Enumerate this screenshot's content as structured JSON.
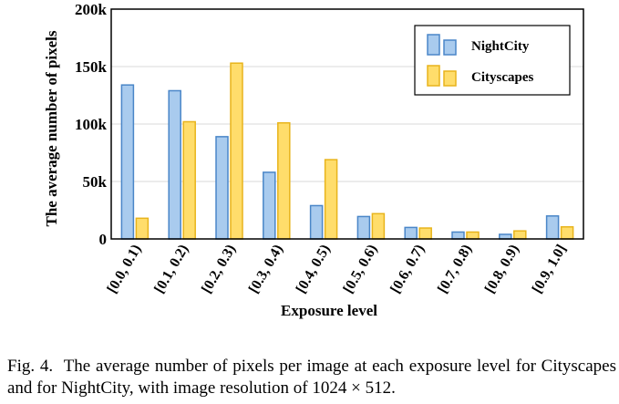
{
  "chart_data": {
    "type": "bar",
    "xlabel": "Exposure level",
    "ylabel": "The average number of pixels",
    "ylim": [
      0,
      200000
    ],
    "yticks": [
      {
        "value": 0,
        "label": "0"
      },
      {
        "value": 50000,
        "label": "50k"
      },
      {
        "value": 100000,
        "label": "100k"
      },
      {
        "value": 150000,
        "label": "150k"
      },
      {
        "value": 200000,
        "label": "200k"
      }
    ],
    "categories": [
      "[0.0, 0.1)",
      "[0.1, 0.2)",
      "[0.2, 0.3)",
      "[0.3, 0.4)",
      "[0.4, 0.5)",
      "[0.5, 0.6)",
      "[0.6, 0.7)",
      "[0.7, 0.8)",
      "[0.8, 0.9)",
      "[0.9, 1.0]"
    ],
    "series": [
      {
        "name": "NightCity",
        "color_fill": "#a9cbee",
        "color_stroke": "#4a86c8",
        "values": [
          134000,
          129000,
          89000,
          58000,
          29000,
          19500,
          10000,
          6000,
          4000,
          20000
        ]
      },
      {
        "name": "Cityscapes",
        "color_fill": "#ffdd6b",
        "color_stroke": "#e8b41c",
        "values": [
          18000,
          102000,
          153000,
          101000,
          69000,
          22000,
          9500,
          6000,
          7000,
          10500
        ]
      }
    ],
    "grid": "horizontal",
    "legend": "top-right"
  },
  "caption": {
    "label": "Fig. 4.",
    "text": "The average number of pixels per image at each exposure level for Cityscapes and for NightCity, with image resolution of 1024 × 512."
  }
}
